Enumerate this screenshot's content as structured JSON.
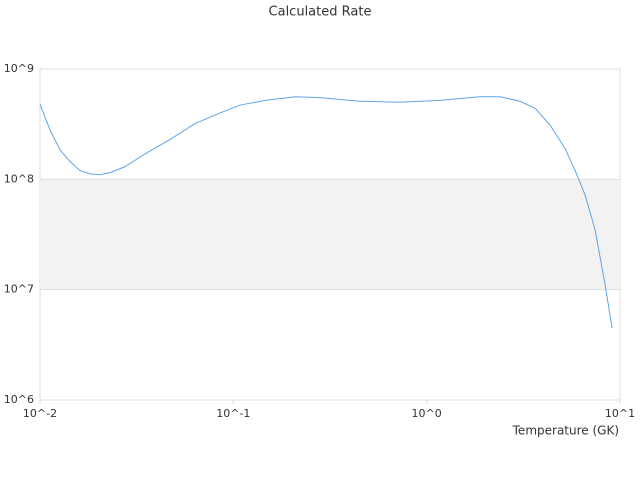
{
  "chart_data": {
    "type": "line",
    "title": "Calculated Rate",
    "x_label": "Temperature (GK)",
    "x": [
      0.01,
      0.01127,
      0.01269,
      0.01429,
      0.0161,
      0.01815,
      0.0204,
      0.023,
      0.0275,
      0.0349,
      0.0471,
      0.0634,
      0.0854,
      0.108,
      0.146,
      0.209,
      0.281,
      0.452,
      0.728,
      1.17,
      1.89,
      2.4,
      3.04,
      3.64,
      4.35,
      5.2,
      5.86,
      6.6,
      7.43,
      8.38,
      9.1
    ],
    "series": [
      {
        "name": "Calculated Rate",
        "color": "#5da5e8",
        "values": [
          480000000,
          280000000,
          185000000,
          145000000,
          120000000,
          112000000,
          110000000,
          115000000,
          130000000,
          170000000,
          230000000,
          320000000,
          400000000,
          470000000,
          520000000,
          560000000,
          550000000,
          510000000,
          500000000,
          520000000,
          560000000,
          560000000,
          510000000,
          440000000,
          310000000,
          190000000,
          120000000,
          72000000,
          35000000,
          11000000,
          4500000
        ]
      }
    ],
    "xscale": "log",
    "yscale": "log",
    "xlim": [
      0.01,
      10
    ],
    "ylim": [
      1000000,
      1000000000
    ],
    "xticks": [
      {
        "value": 0.01,
        "label": "10^-2"
      },
      {
        "value": 0.1,
        "label": "10^-1"
      },
      {
        "value": 1,
        "label": "10^0"
      },
      {
        "value": 10,
        "label": "10^1"
      }
    ],
    "yticks": [
      {
        "value": 1000000,
        "label": "10^6"
      },
      {
        "value": 10000000,
        "label": "10^7"
      },
      {
        "value": 100000000,
        "label": "10^8"
      },
      {
        "value": 1000000000,
        "label": "10^9"
      }
    ],
    "grid": true,
    "band_color": "#f2f2f2"
  }
}
